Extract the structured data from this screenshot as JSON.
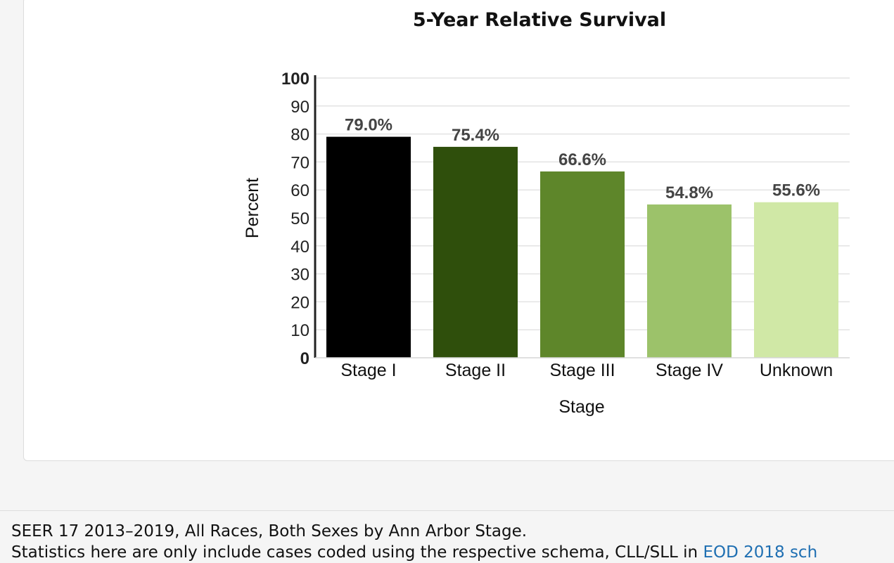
{
  "chart_data": {
    "type": "bar",
    "title": "5-Year Relative Survival",
    "xlabel": "Stage",
    "ylabel": "Percent",
    "categories": [
      "Stage I",
      "Stage II",
      "Stage III",
      "Stage IV",
      "Unknown"
    ],
    "values": [
      79.0,
      75.4,
      66.6,
      54.8,
      55.6
    ],
    "value_labels": [
      "79.0%",
      "75.4%",
      "66.6%",
      "54.8%",
      "55.6%"
    ],
    "colors": [
      "#000000",
      "#2f4f0c",
      "#5e862a",
      "#9cc26a",
      "#d0e8a6"
    ],
    "ylim": [
      0,
      100
    ],
    "yticks": [
      0,
      10,
      20,
      30,
      40,
      50,
      60,
      70,
      80,
      90,
      100
    ],
    "grid": true,
    "legend": "none"
  },
  "footer": {
    "line1": "SEER 17 2013–2019, All Races, Both Sexes by Ann Arbor Stage.",
    "line2_text": "Statistics here are only include cases coded using the respective schema, CLL/SLL in ",
    "line2_link": "EOD 2018 sch"
  }
}
